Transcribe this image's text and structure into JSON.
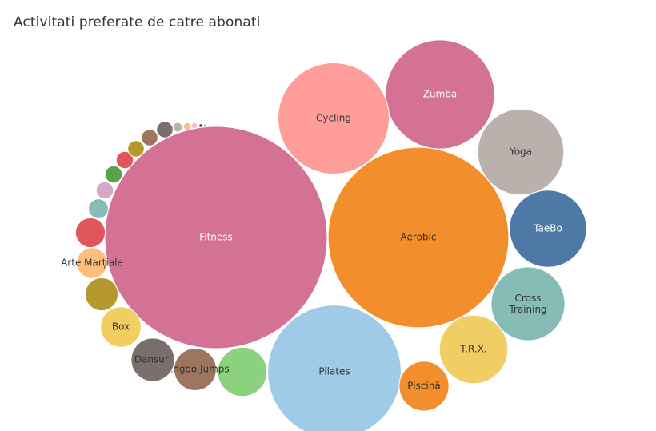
{
  "chart_data": {
    "type": "bubble",
    "title": "Activitati preferate de catre abonati",
    "items": [
      {
        "name": "Fitness",
        "value": 100,
        "color": "#d37295",
        "label_color": "#ffffff"
      },
      {
        "name": "Aerobic",
        "value": 66,
        "color": "#f28e2b",
        "label_color": "#333333"
      },
      {
        "name": "Pilates",
        "value": 36,
        "color": "#a0cbe8",
        "label_color": "#333333"
      },
      {
        "name": "Zumba",
        "value": 24,
        "color": "#d37295",
        "label_color": "#ffffff"
      },
      {
        "name": "Cycling",
        "value": 25,
        "color": "#ff9d9a",
        "label_color": "#333333"
      },
      {
        "name": "Yoga",
        "value": 15,
        "color": "#bab0ac",
        "label_color": "#333333"
      },
      {
        "name": "TaeBo",
        "value": 12,
        "color": "#4e79a7",
        "label_color": "#ffffff"
      },
      {
        "name": "Cross Training",
        "value": 11,
        "color": "#86bcb6",
        "label_color": "#333333"
      },
      {
        "name": "T.R.X.",
        "value": 9.5,
        "color": "#f1ce63",
        "label_color": "#333333"
      },
      {
        "name": "Piscină",
        "value": 5,
        "color": "#f28e2b",
        "label_color": "#333333"
      },
      {
        "name": "",
        "value": 4.9,
        "color": "#8cd17d",
        "label_color": "#333333"
      },
      {
        "name": "Kangoo Jumps",
        "value": 3.6,
        "color": "#9d7660",
        "label_color": "#333333"
      },
      {
        "name": "Dansuri",
        "value": 3.8,
        "color": "#79706e",
        "label_color": "#333333"
      },
      {
        "name": "Box",
        "value": 3.3,
        "color": "#f1ce63",
        "label_color": "#333333"
      },
      {
        "name": "",
        "value": 2.2,
        "color": "#b6992d",
        "label_color": "#333333"
      },
      {
        "name": "Arte Marțiale",
        "value": 1.9,
        "color": "#ffbe7d",
        "label_color": "#333333"
      },
      {
        "name": "",
        "value": 1.8,
        "color": "#e15759",
        "label_color": "#333333"
      },
      {
        "name": "",
        "value": 0.8,
        "color": "#86bcb6",
        "label_color": "#333333"
      },
      {
        "name": "",
        "value": 0.6,
        "color": "#d4a6c8",
        "label_color": "#333333"
      },
      {
        "name": "",
        "value": 0.6,
        "color": "#59a14f",
        "label_color": "#333333"
      },
      {
        "name": "",
        "value": 0.6,
        "color": "#e15759",
        "label_color": "#333333"
      },
      {
        "name": "",
        "value": 0.55,
        "color": "#b6992d",
        "label_color": "#333333"
      },
      {
        "name": "",
        "value": 0.55,
        "color": "#9d7660",
        "label_color": "#333333"
      },
      {
        "name": "",
        "value": 0.55,
        "color": "#79706e",
        "label_color": "#333333"
      },
      {
        "name": "",
        "value": 0.18,
        "color": "#bab0ac",
        "label_color": "#333333"
      },
      {
        "name": "",
        "value": 0.12,
        "color": "#ffbe7d",
        "label_color": "#333333"
      },
      {
        "name": "",
        "value": 0.08,
        "color": "#fabfd2",
        "label_color": "#333333"
      },
      {
        "name": "",
        "value": 0.03,
        "color": "#555555",
        "label_color": "#333333"
      },
      {
        "name": "",
        "value": 0.02,
        "color": "#bab0ac",
        "label_color": "#333333"
      }
    ]
  }
}
